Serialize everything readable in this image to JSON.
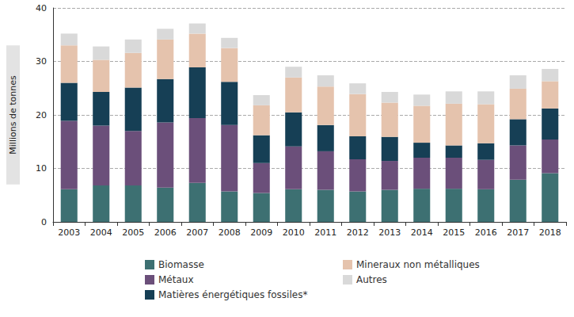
{
  "chart_data": {
    "type": "bar",
    "stacked": true,
    "y_label": "Millions de tonnes",
    "categories": [
      "2003",
      "2004",
      "2005",
      "2006",
      "2007",
      "2008",
      "2009",
      "2010",
      "2011",
      "2012",
      "2013",
      "2014",
      "2015",
      "2016",
      "2017",
      "2018"
    ],
    "series": [
      {
        "name": "Biomasse",
        "color": "#3d7072",
        "values": [
          6.1,
          6.8,
          6.8,
          6.4,
          7.3,
          5.7,
          5.4,
          6.1,
          6.0,
          5.7,
          6.0,
          6.2,
          6.2,
          6.1,
          7.9,
          9.1
        ]
      },
      {
        "name": "Métaux",
        "color": "#6b4f7a",
        "values": [
          12.8,
          11.2,
          10.2,
          12.2,
          12.1,
          12.4,
          5.6,
          8.0,
          7.2,
          6.0,
          5.4,
          5.8,
          5.8,
          5.5,
          6.4,
          6.3
        ]
      },
      {
        "name": "Matières énergétiques fossiles*",
        "color": "#163f55",
        "values": [
          7.1,
          6.3,
          8.1,
          8.1,
          9.5,
          8.1,
          5.2,
          6.4,
          4.9,
          4.3,
          4.5,
          2.8,
          2.3,
          3.1,
          4.9,
          5.8
        ]
      },
      {
        "name": "Mineraux non métalliques",
        "color": "#e5c3ad",
        "values": [
          7.0,
          6.0,
          6.5,
          7.4,
          6.3,
          6.3,
          5.6,
          6.5,
          7.2,
          7.9,
          6.4,
          6.9,
          7.8,
          7.3,
          5.7,
          5.1
        ]
      },
      {
        "name": "Autres",
        "color": "#d9d9d9",
        "values": [
          2.2,
          2.5,
          2.5,
          2.0,
          1.9,
          1.9,
          1.9,
          2.0,
          2.1,
          2.0,
          2.0,
          2.1,
          2.3,
          2.4,
          2.5,
          2.3
        ]
      }
    ],
    "ylim": [
      0,
      40
    ],
    "yticks": [
      0,
      10,
      20,
      30,
      40
    ],
    "grid": true,
    "legend": "bottom"
  }
}
